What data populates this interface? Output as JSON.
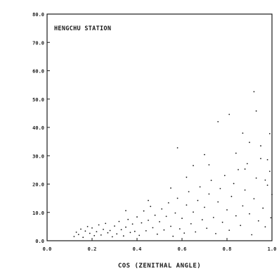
{
  "chart_data": {
    "type": "scatter",
    "annotation": "HENGCHU STATION",
    "xlabel": "COS (ZENITHAL ANGLE)",
    "ylabel": "",
    "xlim": [
      0.0,
      1.0
    ],
    "ylim": [
      0.0,
      80.0
    ],
    "x_ticks": [
      "0.0",
      "0.2",
      "0.4",
      "0.6",
      "0.8",
      "1.0"
    ],
    "y_ticks": [
      "0.0",
      "10.0",
      "20.0",
      "30.0",
      "40.0",
      "50.0",
      "60.0",
      "70.0",
      "80.0"
    ],
    "grid": false,
    "legend": "none",
    "marker_color": "#1a1a1a",
    "series": [
      {
        "points": [
          [
            0.12,
            1.5
          ],
          [
            0.13,
            3.0
          ],
          [
            0.14,
            2.2
          ],
          [
            0.15,
            4.1
          ],
          [
            0.16,
            1.2
          ],
          [
            0.17,
            3.4
          ],
          [
            0.18,
            5.0
          ],
          [
            0.19,
            2.6
          ],
          [
            0.2,
            4.5
          ],
          [
            0.21,
            1.8
          ],
          [
            0.22,
            3.2
          ],
          [
            0.23,
            5.6
          ],
          [
            0.24,
            2.0
          ],
          [
            0.25,
            4.0
          ],
          [
            0.26,
            6.1
          ],
          [
            0.27,
            2.8
          ],
          [
            0.28,
            3.6
          ],
          [
            0.29,
            1.4
          ],
          [
            0.3,
            5.2
          ],
          [
            0.31,
            2.4
          ],
          [
            0.32,
            6.8
          ],
          [
            0.33,
            3.9
          ],
          [
            0.34,
            1.7
          ],
          [
            0.35,
            4.8
          ],
          [
            0.36,
            7.5
          ],
          [
            0.37,
            2.9
          ],
          [
            0.38,
            5.9
          ],
          [
            0.39,
            3.3
          ],
          [
            0.4,
            8.4
          ],
          [
            0.41,
            1.9
          ],
          [
            0.42,
            6.3
          ],
          [
            0.43,
            10.5
          ],
          [
            0.44,
            3.5
          ],
          [
            0.45,
            7.2
          ],
          [
            0.46,
            12.1
          ],
          [
            0.47,
            4.6
          ],
          [
            0.48,
            9.0
          ],
          [
            0.49,
            2.3
          ],
          [
            0.5,
            6.7
          ],
          [
            0.51,
            11.2
          ],
          [
            0.52,
            3.8
          ],
          [
            0.53,
            8.6
          ],
          [
            0.54,
            13.4
          ],
          [
            0.55,
            5.1
          ],
          [
            0.56,
            1.6
          ],
          [
            0.57,
            9.8
          ],
          [
            0.58,
            15.0
          ],
          [
            0.59,
            4.2
          ],
          [
            0.6,
            7.9
          ],
          [
            0.61,
            2.7
          ],
          [
            0.62,
            12.6
          ],
          [
            0.63,
            17.3
          ],
          [
            0.64,
            6.0
          ],
          [
            0.65,
            10.1
          ],
          [
            0.66,
            3.1
          ],
          [
            0.67,
            14.2
          ],
          [
            0.68,
            19.0
          ],
          [
            0.69,
            7.4
          ],
          [
            0.7,
            11.8
          ],
          [
            0.71,
            4.4
          ],
          [
            0.72,
            16.5
          ],
          [
            0.73,
            21.3
          ],
          [
            0.74,
            8.2
          ],
          [
            0.75,
            2.5
          ],
          [
            0.76,
            13.7
          ],
          [
            0.77,
            18.4
          ],
          [
            0.78,
            6.5
          ],
          [
            0.79,
            23.0
          ],
          [
            0.8,
            10.9
          ],
          [
            0.81,
            3.7
          ],
          [
            0.82,
            15.6
          ],
          [
            0.83,
            20.2
          ],
          [
            0.84,
            8.8
          ],
          [
            0.85,
            25.1
          ],
          [
            0.86,
            5.4
          ],
          [
            0.87,
            12.3
          ],
          [
            0.88,
            17.9
          ],
          [
            0.89,
            27.2
          ],
          [
            0.9,
            9.5
          ],
          [
            0.91,
            2.1
          ],
          [
            0.92,
            14.8
          ],
          [
            0.93,
            22.1
          ],
          [
            0.94,
            7.0
          ],
          [
            0.95,
            29.0
          ],
          [
            0.96,
            11.5
          ],
          [
            0.97,
            4.9
          ],
          [
            0.98,
            19.6
          ],
          [
            0.99,
            24.5
          ],
          [
            0.995,
            8.1
          ],
          [
            1.0,
            16.3
          ],
          [
            0.58,
            32.8
          ],
          [
            0.76,
            42.0
          ],
          [
            0.81,
            44.6
          ],
          [
            0.92,
            52.6
          ],
          [
            0.93,
            45.8
          ],
          [
            0.87,
            38.0
          ],
          [
            0.7,
            30.4
          ],
          [
            0.95,
            33.5
          ],
          [
            0.99,
            37.8
          ],
          [
            0.65,
            26.5
          ],
          [
            0.35,
            10.6
          ],
          [
            0.45,
            14.2
          ],
          [
            0.55,
            18.6
          ],
          [
            0.62,
            22.4
          ],
          [
            0.72,
            26.8
          ],
          [
            0.84,
            30.9
          ],
          [
            0.9,
            34.7
          ],
          [
            0.98,
            28.6
          ],
          [
            0.97,
            21.4
          ],
          [
            0.88,
            25.3
          ]
        ]
      }
    ]
  }
}
